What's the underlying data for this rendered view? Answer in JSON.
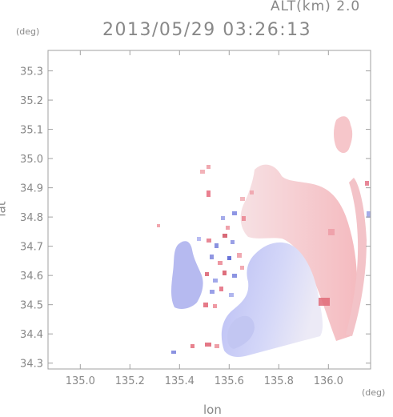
{
  "header": {
    "altitude_label": "ALT(km) 2.0",
    "timestamp": "2013/05/29 03:26:13"
  },
  "axes": {
    "x_unit": "(deg)",
    "y_unit": "(deg)",
    "x_label": "lon",
    "y_label": "lat",
    "x_range": [
      134.87,
      136.17
    ],
    "y_range": [
      34.28,
      35.37
    ],
    "x_ticks": [
      "135.0",
      "135.2",
      "135.4",
      "135.6",
      "135.8",
      "136.0"
    ],
    "y_ticks": [
      "34.3",
      "34.4",
      "34.5",
      "34.6",
      "34.7",
      "34.8",
      "34.9",
      "35.0",
      "35.1",
      "35.2",
      "35.3"
    ]
  },
  "colors": {
    "axis_frame": "#a0a0a0",
    "text": "#888888",
    "approaching": "#aab0f0",
    "receding": "#f4b4b8",
    "strong_receding": "#e06070",
    "strong_approaching": "#6070d8"
  }
}
